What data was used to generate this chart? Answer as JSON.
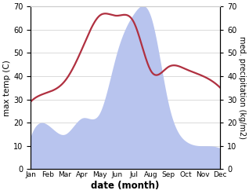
{
  "months": [
    "Jan",
    "Feb",
    "Mar",
    "Apr",
    "May",
    "Jun",
    "Jul",
    "Aug",
    "Sep",
    "Oct",
    "Nov",
    "Dec"
  ],
  "temperature": [
    29,
    33,
    38,
    52,
    66,
    66,
    63,
    42,
    44,
    43,
    40,
    35
  ],
  "precipitation": [
    14,
    19,
    15,
    22,
    24,
    50,
    67,
    65,
    28,
    12,
    10,
    9
  ],
  "temp_color": "#b03040",
  "precip_color": "#b8c4ee",
  "xlabel": "date (month)",
  "ylabel_left": "max temp (C)",
  "ylabel_right": "med. precipitation (kg/m2)",
  "ylim": [
    0,
    70
  ],
  "figsize": [
    3.18,
    2.47
  ],
  "dpi": 100,
  "bg_color": "#ffffff"
}
